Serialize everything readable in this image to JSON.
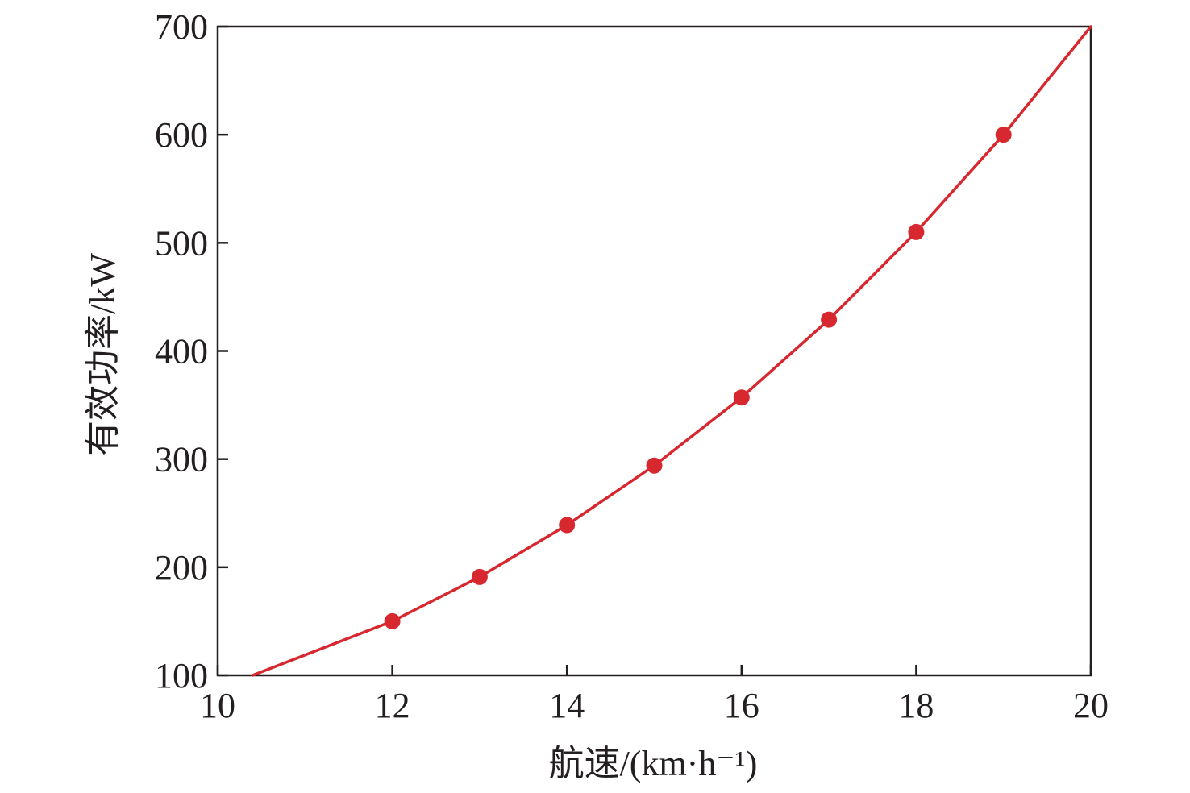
{
  "chart_data": {
    "type": "line",
    "xlabel": "航速/(km·h⁻¹)",
    "ylabel": "有效功率/kW",
    "xlim": [
      10,
      20
    ],
    "ylim": [
      100,
      700
    ],
    "xticks": [
      10,
      12,
      14,
      16,
      18,
      20
    ],
    "yticks": [
      100,
      200,
      300,
      400,
      500,
      600,
      700
    ],
    "grid": false,
    "series": [
      {
        "color": "#d7282f",
        "x": [
          10.4,
          12,
          13,
          14,
          15,
          16,
          17,
          18,
          19,
          20
        ],
        "y": [
          100,
          150,
          191,
          239,
          294,
          357,
          429,
          510,
          600,
          700
        ],
        "markers": [
          false,
          true,
          true,
          true,
          true,
          true,
          true,
          true,
          true,
          false
        ]
      }
    ]
  }
}
